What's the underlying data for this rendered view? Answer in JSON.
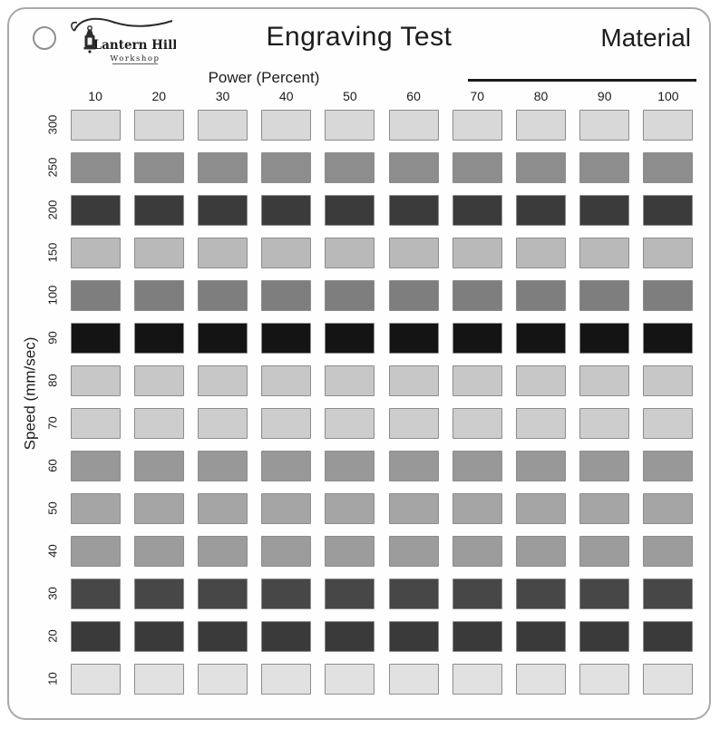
{
  "page": {
    "title": "Engraving Test",
    "material_label": "Material"
  },
  "logo": {
    "name": "Lantern Hill",
    "subname": "Workshop"
  },
  "axes": {
    "x_label": "Power (Percent)",
    "y_label": "Speed (mm/sec)"
  },
  "chart_data": {
    "type": "heatmap",
    "title": "Engraving Test",
    "xlabel": "Power (Percent)",
    "ylabel": "Speed (mm/sec)",
    "x": [
      "10",
      "20",
      "30",
      "40",
      "50",
      "60",
      "70",
      "80",
      "90",
      "100"
    ],
    "y": [
      "300",
      "250",
      "200",
      "150",
      "100",
      "90",
      "80",
      "70",
      "60",
      "50",
      "40",
      "30",
      "20",
      "10"
    ],
    "row_shades": [
      "#d8d8d8",
      "#8d8d8d",
      "#3b3b3b",
      "#b9b9b9",
      "#7e7e7e",
      "#141414",
      "#c7c7c7",
      "#cdcdcd",
      "#989898",
      "#a5a5a5",
      "#9c9c9c",
      "#474747",
      "#3a3a3a",
      "#e1e1e1"
    ],
    "cell_border_color": "#8c8c8c",
    "legend": "none",
    "grid": "off"
  }
}
